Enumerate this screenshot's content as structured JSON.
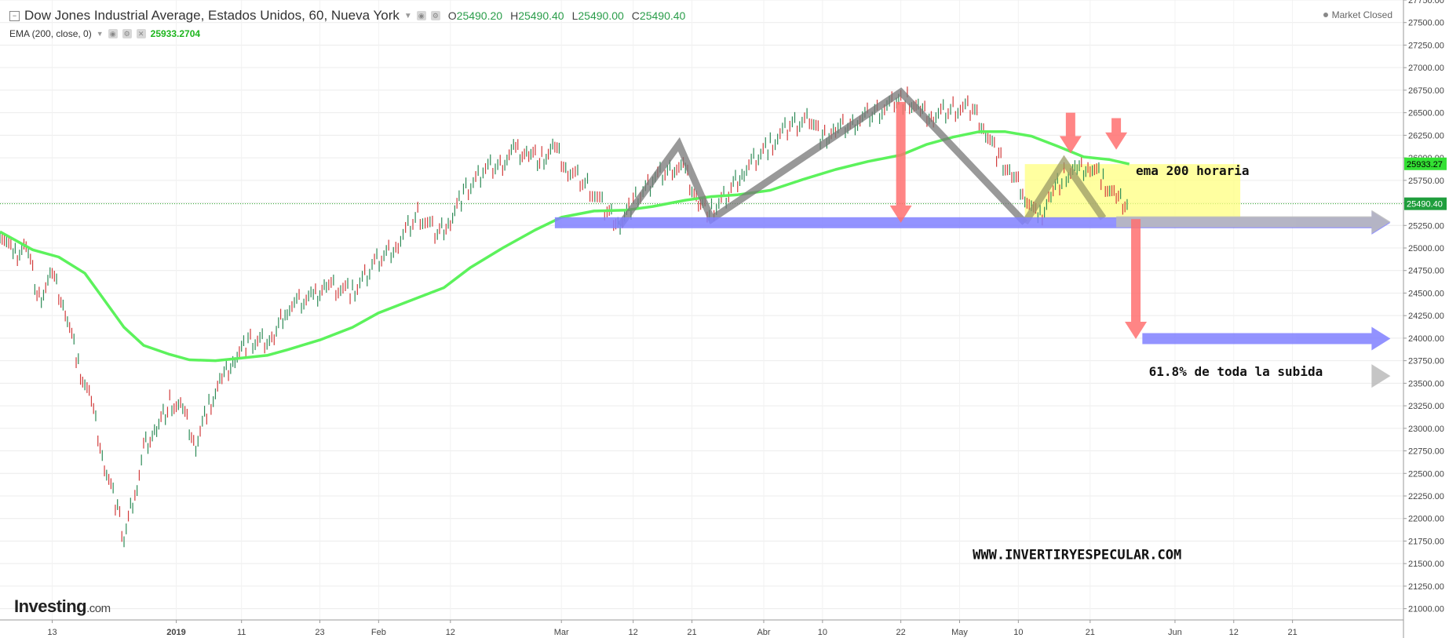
{
  "header": {
    "title": "Dow Jones Industrial Average, Estados Unidos, 60, Nueva York",
    "ohlc": [
      {
        "k": "O",
        "v": "25490.20"
      },
      {
        "k": "H",
        "v": "25490.40"
      },
      {
        "k": "L",
        "v": "25490.00"
      },
      {
        "k": "C",
        "v": "25490.40"
      }
    ],
    "indicator": "EMA (200, close, 0)",
    "indicator_value": "25933.2704",
    "status": "Market Closed"
  },
  "brand": {
    "name": "Investing",
    "suffix": ".com"
  },
  "chart_data": {
    "type": "line",
    "title": "Dow Jones Industrial Average, Estados Unidos, 60, Nueva York",
    "ylim": [
      20875,
      27750
    ],
    "y_ticks": [
      "27750.00",
      "27500.00",
      "27250.00",
      "27000.00",
      "26750.00",
      "26500.00",
      "26250.00",
      "26000.00",
      "25750.00",
      "25500.00",
      "25250.00",
      "25000.00",
      "24750.00",
      "24500.00",
      "24250.00",
      "24000.00",
      "23750.00",
      "23500.00",
      "23250.00",
      "23000.00",
      "22750.00",
      "22500.00",
      "22250.00",
      "22000.00",
      "21750.00",
      "21500.00",
      "21250.00",
      "21000.00"
    ],
    "x_ticks": [
      "13",
      "2019",
      "11",
      "23",
      "Feb",
      "12",
      "Mar",
      "12",
      "21",
      "Abr",
      "10",
      "22",
      "May",
      "10",
      "21",
      "Jun",
      "12",
      "21"
    ],
    "x_range": [
      "2018-12-05",
      "2019-07-08"
    ],
    "current_price": "25490.40",
    "ema_label": "25933.27",
    "series": [
      {
        "name": "EMA (200, close, 0)",
        "color": "#5cf25c",
        "points": [
          [
            "2018-12-05",
            25180
          ],
          [
            "2018-12-10",
            24980
          ],
          [
            "2018-12-14",
            24900
          ],
          [
            "2018-12-18",
            24720
          ],
          [
            "2018-12-21",
            24420
          ],
          [
            "2018-12-24",
            24120
          ],
          [
            "2018-12-27",
            23920
          ],
          [
            "2018-12-31",
            23820
          ],
          [
            "2019-01-03",
            23760
          ],
          [
            "2019-01-07",
            23750
          ],
          [
            "2019-01-11",
            23780
          ],
          [
            "2019-01-15",
            23810
          ],
          [
            "2019-01-18",
            23870
          ],
          [
            "2019-01-23",
            23980
          ],
          [
            "2019-01-28",
            24120
          ],
          [
            "2019-02-01",
            24280
          ],
          [
            "2019-02-06",
            24420
          ],
          [
            "2019-02-11",
            24560
          ],
          [
            "2019-02-15",
            24780
          ],
          [
            "2019-02-20",
            25000
          ],
          [
            "2019-02-25",
            25200
          ],
          [
            "2019-03-01",
            25340
          ],
          [
            "2019-03-06",
            25410
          ],
          [
            "2019-03-11",
            25420
          ],
          [
            "2019-03-15",
            25460
          ],
          [
            "2019-03-20",
            25530
          ],
          [
            "2019-03-24",
            25570
          ],
          [
            "2019-03-28",
            25590
          ],
          [
            "2019-04-02",
            25640
          ],
          [
            "2019-04-07",
            25760
          ],
          [
            "2019-04-12",
            25870
          ],
          [
            "2019-04-17",
            25960
          ],
          [
            "2019-04-22",
            26030
          ],
          [
            "2019-04-26",
            26150
          ],
          [
            "2019-04-30",
            26230
          ],
          [
            "2019-05-04",
            26290
          ],
          [
            "2019-05-08",
            26290
          ],
          [
            "2019-05-12",
            26240
          ],
          [
            "2019-05-16",
            26130
          ],
          [
            "2019-05-20",
            26010
          ],
          [
            "2019-05-24",
            25980
          ],
          [
            "2019-05-27",
            25930
          ]
        ]
      },
      {
        "name": "Dow Jones Industrial Average",
        "color": "#c0392b",
        "points": [
          [
            "2018-12-05",
            25200
          ],
          [
            "2018-12-07",
            24900
          ],
          [
            "2018-12-09",
            25050
          ],
          [
            "2018-12-11",
            24420
          ],
          [
            "2018-12-13",
            24700
          ],
          [
            "2018-12-15",
            24300
          ],
          [
            "2018-12-17",
            23700
          ],
          [
            "2018-12-19",
            23300
          ],
          [
            "2018-12-21",
            22600
          ],
          [
            "2018-12-23",
            22100
          ],
          [
            "2018-12-24",
            21760
          ],
          [
            "2018-12-26",
            22400
          ],
          [
            "2018-12-27",
            22800
          ],
          [
            "2018-12-29",
            23000
          ],
          [
            "2018-12-31",
            23280
          ],
          [
            "2019-01-02",
            23200
          ],
          [
            "2019-01-04",
            22800
          ],
          [
            "2019-01-06",
            23250
          ],
          [
            "2019-01-08",
            23550
          ],
          [
            "2019-01-10",
            23800
          ],
          [
            "2019-01-12",
            23950
          ],
          [
            "2019-01-16",
            24000
          ],
          [
            "2019-01-18",
            24350
          ],
          [
            "2019-01-22",
            24450
          ],
          [
            "2019-01-24",
            24600
          ],
          [
            "2019-01-28",
            24500
          ],
          [
            "2019-01-31",
            24800
          ],
          [
            "2019-02-04",
            25050
          ],
          [
            "2019-02-07",
            25380
          ],
          [
            "2019-02-10",
            25150
          ],
          [
            "2019-02-12",
            25320
          ],
          [
            "2019-02-14",
            25600
          ],
          [
            "2019-02-17",
            25850
          ],
          [
            "2019-02-20",
            25950
          ],
          [
            "2019-02-22",
            26080
          ],
          [
            "2019-02-24",
            26050
          ],
          [
            "2019-02-26",
            25980
          ],
          [
            "2019-02-28",
            26100
          ],
          [
            "2019-03-02",
            25850
          ],
          [
            "2019-03-05",
            25700
          ],
          [
            "2019-03-08",
            25400
          ],
          [
            "2019-03-10",
            25280
          ],
          [
            "2019-03-12",
            25500
          ],
          [
            "2019-03-15",
            25750
          ],
          [
            "2019-03-18",
            25900
          ],
          [
            "2019-03-20",
            25850
          ],
          [
            "2019-03-22",
            25500
          ],
          [
            "2019-03-24",
            25400
          ],
          [
            "2019-03-27",
            25650
          ],
          [
            "2019-03-29",
            25850
          ],
          [
            "2019-04-02",
            26150
          ],
          [
            "2019-04-05",
            26350
          ],
          [
            "2019-04-08",
            26450
          ],
          [
            "2019-04-10",
            26200
          ],
          [
            "2019-04-12",
            26300
          ],
          [
            "2019-04-15",
            26400
          ],
          [
            "2019-04-18",
            26500
          ],
          [
            "2019-04-21",
            26600
          ],
          [
            "2019-04-23",
            26640
          ],
          [
            "2019-04-25",
            26500
          ],
          [
            "2019-04-27",
            26450
          ],
          [
            "2019-04-30",
            26550
          ],
          [
            "2019-05-03",
            26540
          ],
          [
            "2019-05-05",
            26300
          ],
          [
            "2019-05-07",
            26000
          ],
          [
            "2019-05-09",
            25800
          ],
          [
            "2019-05-11",
            25600
          ],
          [
            "2019-05-13",
            25300
          ],
          [
            "2019-05-15",
            25600
          ],
          [
            "2019-05-17",
            25800
          ],
          [
            "2019-05-19",
            25850
          ],
          [
            "2019-05-21",
            25900
          ],
          [
            "2019-05-23",
            25750
          ],
          [
            "2019-05-25",
            25550
          ],
          [
            "2019-05-27",
            25490
          ]
        ]
      }
    ],
    "annotations": [
      {
        "text": "ema 200 horaria",
        "date": "2019-05-28",
        "y": 25810
      },
      {
        "text": "61.8% de toda la subida",
        "date": "2019-05-30",
        "y": 23580
      },
      {
        "text": "WWW.INVERTIRYESPECULAR.COM",
        "date": "2019-05-03",
        "y": 21550
      }
    ],
    "zone": {
      "y_top": 25930,
      "y_bottom": 25325,
      "date_start": "2019-05-11",
      "date_end": "2019-06-13",
      "color": "#ffff80"
    },
    "horizontal_arrows": [
      {
        "y": 25280,
        "date_start": "2019-02-28",
        "date_end": "2019-07-06",
        "color": "#8080ff"
      },
      {
        "y": 23995,
        "date_start": "2019-05-29",
        "date_end": "2019-07-06",
        "color": "#8080ff"
      },
      {
        "y": 23580,
        "date_start": "2019-07-04",
        "date_end": "2019-07-06",
        "color": "#bbbbbb"
      },
      {
        "y": 25290,
        "date_start": "2019-05-25",
        "date_end": "2019-07-06",
        "color": "#bbbbbb"
      }
    ],
    "vertical_arrows": [
      {
        "date": "2019-04-22",
        "y_start": 26620,
        "y_end": 25280,
        "color": "#ff7070"
      },
      {
        "date": "2019-05-28",
        "y_start": 25320,
        "y_end": 23990,
        "color": "#ff7070"
      },
      {
        "date": "2019-05-18",
        "y_start": 26500,
        "y_end": 26050,
        "color": "#ff7070"
      },
      {
        "date": "2019-05-25",
        "y_start": 26440,
        "y_end": 26090,
        "color": "#ff7070"
      }
    ],
    "pattern_lines": [
      {
        "color": "#777777",
        "points": [
          [
            "2019-03-10",
            25250
          ],
          [
            "2019-03-19",
            26150
          ],
          [
            "2019-03-24",
            25320
          ],
          [
            "2019-04-22",
            26730
          ],
          [
            "2019-05-11",
            25280
          ]
        ]
      },
      {
        "color": "#999966",
        "points": [
          [
            "2019-05-11",
            25280
          ],
          [
            "2019-05-17",
            25960
          ],
          [
            "2019-05-23",
            25330
          ]
        ]
      }
    ]
  }
}
